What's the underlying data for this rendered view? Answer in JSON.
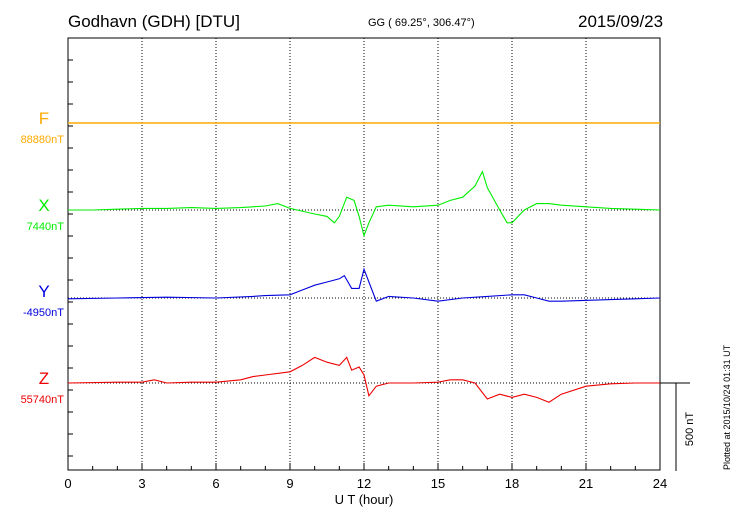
{
  "header": {
    "station": "Godhavn (GDH)  [DTU]",
    "coords": "GG ( 69.25°, 306.47°)",
    "date": "2015/09/23"
  },
  "footer": {
    "plotted": "Plotted at 2015/10/24 01:31  UT"
  },
  "scale_bar_label": "500 nT",
  "colors": {
    "F": "#ffaa00",
    "X": "#00ee00",
    "Y": "#0000dd",
    "Z": "#ee0000"
  },
  "chart_data": {
    "type": "line",
    "xlabel": "U T (hour)",
    "xlim": [
      0,
      24
    ],
    "xticks": [
      "0",
      "3",
      "6",
      "9",
      "12",
      "15",
      "18",
      "21",
      "24"
    ],
    "grid": true,
    "y_units": "nT (relative to baseline; 500 nT scale bar)",
    "series": [
      {
        "name": "F",
        "baseline_label": "88880nT",
        "points": [
          [
            0,
            0
          ],
          [
            24,
            0
          ]
        ]
      },
      {
        "name": "X",
        "baseline_label": "7440nT",
        "points": [
          [
            0,
            0
          ],
          [
            1,
            0
          ],
          [
            2,
            5
          ],
          [
            3,
            10
          ],
          [
            4,
            10
          ],
          [
            5,
            15
          ],
          [
            6,
            10
          ],
          [
            7,
            15
          ],
          [
            7.5,
            20
          ],
          [
            8,
            25
          ],
          [
            8.5,
            40
          ],
          [
            9,
            10
          ],
          [
            10,
            -25
          ],
          [
            10.5,
            -40
          ],
          [
            10.8,
            -80
          ],
          [
            11,
            -40
          ],
          [
            11.3,
            80
          ],
          [
            11.6,
            60
          ],
          [
            11.8,
            -40
          ],
          [
            12,
            -160
          ],
          [
            12.2,
            -80
          ],
          [
            12.5,
            20
          ],
          [
            13,
            30
          ],
          [
            14,
            20
          ],
          [
            15,
            30
          ],
          [
            15.5,
            60
          ],
          [
            16,
            80
          ],
          [
            16.5,
            150
          ],
          [
            16.8,
            240
          ],
          [
            17,
            140
          ],
          [
            17.5,
            0
          ],
          [
            17.8,
            -80
          ],
          [
            18,
            -80
          ],
          [
            18.5,
            0
          ],
          [
            19,
            40
          ],
          [
            19.5,
            40
          ],
          [
            20,
            30
          ],
          [
            21,
            20
          ],
          [
            22,
            10
          ],
          [
            23,
            5
          ],
          [
            24,
            0
          ]
        ]
      },
      {
        "name": "Y",
        "baseline_label": "-4950nT",
        "points": [
          [
            0,
            -5
          ],
          [
            2,
            0
          ],
          [
            4,
            5
          ],
          [
            6,
            0
          ],
          [
            7.5,
            10
          ],
          [
            8,
            15
          ],
          [
            9,
            20
          ],
          [
            9.5,
            50
          ],
          [
            10,
            80
          ],
          [
            10.5,
            100
          ],
          [
            11,
            120
          ],
          [
            11.2,
            140
          ],
          [
            11.5,
            60
          ],
          [
            11.8,
            60
          ],
          [
            12,
            180
          ],
          [
            12.2,
            100
          ],
          [
            12.5,
            -20
          ],
          [
            13,
            10
          ],
          [
            14,
            0
          ],
          [
            15,
            -20
          ],
          [
            16,
            0
          ],
          [
            17,
            10
          ],
          [
            18,
            20
          ],
          [
            18.5,
            20
          ],
          [
            19,
            0
          ],
          [
            19.5,
            -20
          ],
          [
            20,
            -20
          ],
          [
            22,
            -10
          ],
          [
            24,
            0
          ]
        ]
      },
      {
        "name": "Z",
        "baseline_label": "55740nT",
        "points": [
          [
            0,
            0
          ],
          [
            2,
            5
          ],
          [
            3,
            5
          ],
          [
            3.5,
            20
          ],
          [
            4,
            0
          ],
          [
            5,
            5
          ],
          [
            6,
            5
          ],
          [
            7,
            20
          ],
          [
            7.5,
            40
          ],
          [
            8,
            50
          ],
          [
            9,
            70
          ],
          [
            9.5,
            110
          ],
          [
            10,
            160
          ],
          [
            10.5,
            130
          ],
          [
            11,
            110
          ],
          [
            11.3,
            160
          ],
          [
            11.5,
            80
          ],
          [
            11.8,
            100
          ],
          [
            12,
            50
          ],
          [
            12.2,
            -80
          ],
          [
            12.5,
            -20
          ],
          [
            13,
            0
          ],
          [
            14,
            0
          ],
          [
            15,
            5
          ],
          [
            15.5,
            20
          ],
          [
            16,
            20
          ],
          [
            16.5,
            0
          ],
          [
            17,
            -100
          ],
          [
            17.5,
            -70
          ],
          [
            18,
            -90
          ],
          [
            18.5,
            -70
          ],
          [
            19,
            -90
          ],
          [
            19.5,
            -120
          ],
          [
            20,
            -70
          ],
          [
            21,
            -20
          ],
          [
            22,
            -5
          ],
          [
            23,
            0
          ],
          [
            24,
            0
          ]
        ]
      }
    ]
  }
}
